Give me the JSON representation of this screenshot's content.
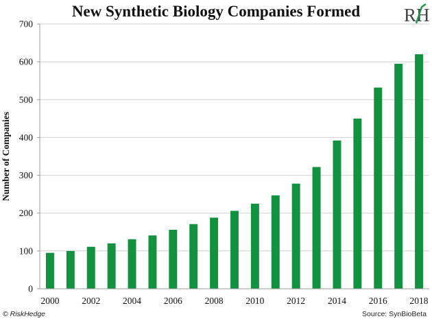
{
  "chart_data": {
    "type": "bar",
    "title": "New Synthetic Biology Companies Formed",
    "xlabel": "",
    "ylabel": "Number of Companies",
    "ylim": [
      0,
      700
    ],
    "yticks": [
      0,
      100,
      200,
      300,
      400,
      500,
      600,
      700
    ],
    "grid": true,
    "categories": [
      "2000",
      "2001",
      "2002",
      "2003",
      "2004",
      "2005",
      "2006",
      "2007",
      "2008",
      "2009",
      "2010",
      "2011",
      "2012",
      "2013",
      "2014",
      "2015",
      "2016",
      "2017",
      "2018"
    ],
    "xtick_labels": [
      "2000",
      "2002",
      "2004",
      "2006",
      "2008",
      "2010",
      "2012",
      "2014",
      "2016",
      "2018"
    ],
    "values": [
      95,
      100,
      111,
      120,
      131,
      141,
      156,
      171,
      188,
      206,
      225,
      247,
      278,
      322,
      392,
      450,
      532,
      595,
      620
    ],
    "bar_color": "#12913e"
  },
  "logo": {
    "text": "RH"
  },
  "footer": {
    "left": "© RiskHedge",
    "right": "Source: SynBioBeta"
  }
}
